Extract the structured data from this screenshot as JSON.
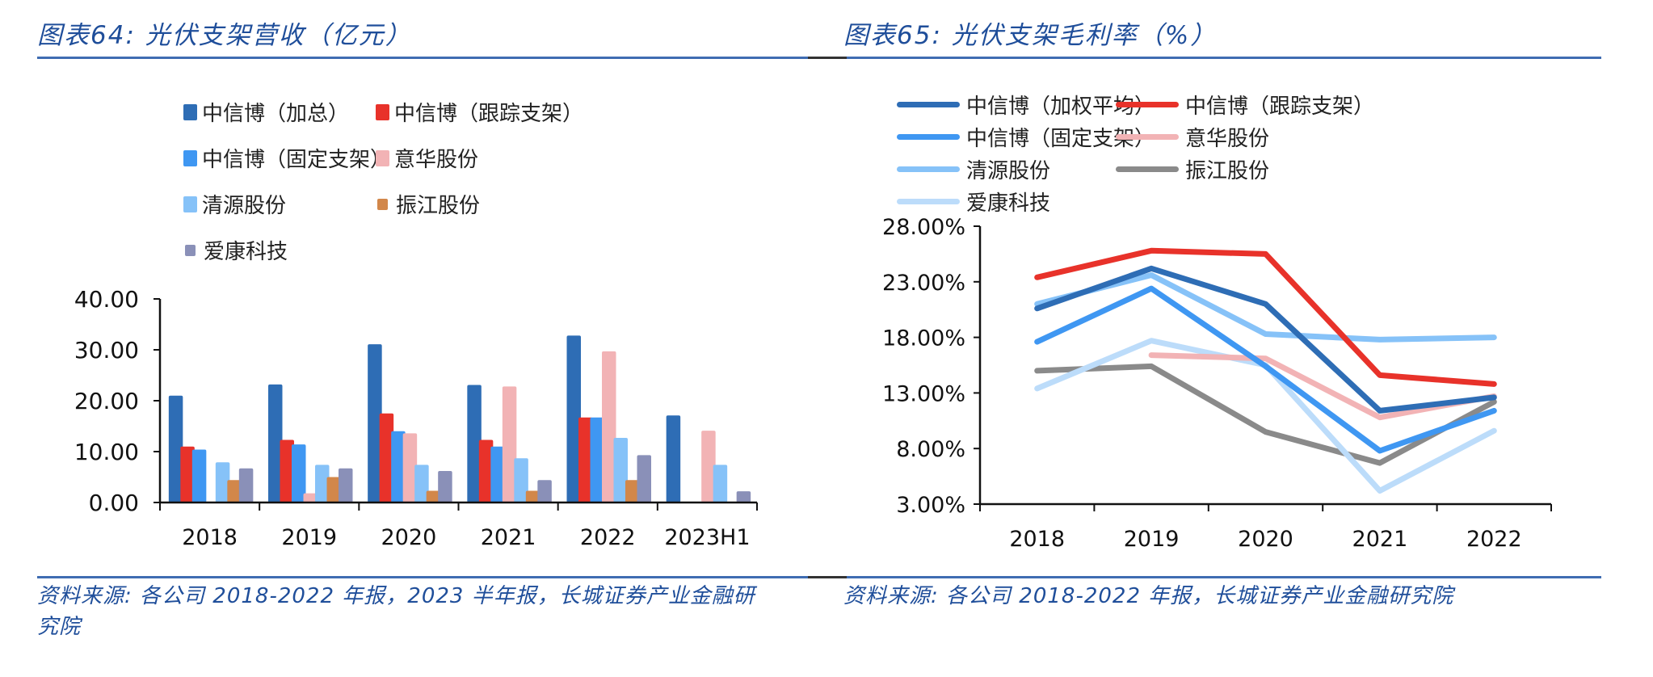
{
  "left": {
    "title": "图表64: 光伏支架营收（亿元）",
    "source_line1": "资料来源: 各公司 2018-2022 年报，2023 半年报，长城证券产业金融研",
    "source_line2": "究院"
  },
  "right": {
    "title": "图表65: 光伏支架毛利率（%）",
    "source_line1": "资料来源: 各公司 2018-2022 年报，长城证券产业金融研究院"
  },
  "chart_data": [
    {
      "type": "bar",
      "title": "光伏支架营收（亿元）",
      "xlabel": "",
      "ylabel": "",
      "ylim": [
        0,
        40
      ],
      "yticks": [
        "0.00",
        "10.00",
        "20.00",
        "30.00",
        "40.00"
      ],
      "categories": [
        "2018",
        "2019",
        "2020",
        "2021",
        "2022",
        "2023H1"
      ],
      "legend_position": "top",
      "series": [
        {
          "name": "中信博（加总）",
          "color": "#2e6db5",
          "values": [
            21.0,
            23.2,
            31.1,
            23.1,
            32.8,
            17.1
          ]
        },
        {
          "name": "中信博（跟踪支架）",
          "color": "#e8322a",
          "values": [
            11.0,
            12.3,
            17.5,
            12.3,
            16.7,
            null
          ]
        },
        {
          "name": "中信博（固定支架）",
          "color": "#3f97f2",
          "values": [
            10.4,
            11.4,
            14.0,
            11.0,
            16.7,
            null
          ]
        },
        {
          "name": "意华股份",
          "color": "#f2b3b5",
          "values": [
            null,
            1.8,
            13.6,
            22.8,
            29.7,
            14.1
          ]
        },
        {
          "name": "清源股份",
          "color": "#86c2f8",
          "values": [
            7.9,
            7.4,
            7.4,
            8.7,
            12.7,
            7.4
          ]
        },
        {
          "name": "振江股份",
          "color": "#d2874a",
          "values": [
            4.4,
            5.0,
            2.3,
            2.3,
            4.4,
            null
          ]
        },
        {
          "name": "爱康科技",
          "color": "#8a90b8",
          "values": [
            6.7,
            6.7,
            6.2,
            4.4,
            9.3,
            2.2
          ]
        }
      ]
    },
    {
      "type": "line",
      "title": "光伏支架毛利率（%）",
      "xlabel": "",
      "ylabel": "",
      "ylim": [
        3,
        28
      ],
      "yticks": [
        "3.00%",
        "8.00%",
        "13.00%",
        "18.00%",
        "23.00%",
        "28.00%"
      ],
      "categories": [
        "2018",
        "2019",
        "2020",
        "2021",
        "2022"
      ],
      "legend_position": "top",
      "series": [
        {
          "name": "中信博（加权平均）",
          "color": "#2e6db5",
          "values": [
            20.6,
            24.2,
            21.0,
            11.4,
            12.6
          ]
        },
        {
          "name": "中信博（跟踪支架）",
          "color": "#e8322a",
          "values": [
            23.4,
            25.8,
            25.5,
            14.6,
            13.8
          ]
        },
        {
          "name": "中信博（固定支架）",
          "color": "#3f97f2",
          "values": [
            17.6,
            22.4,
            15.4,
            7.8,
            11.4
          ]
        },
        {
          "name": "意华股份",
          "color": "#f2b3b5",
          "values": [
            null,
            16.4,
            16.1,
            10.8,
            12.7
          ]
        },
        {
          "name": "清源股份",
          "color": "#86c2f8",
          "values": [
            21.0,
            23.6,
            18.3,
            17.8,
            18.0
          ]
        },
        {
          "name": "振江股份",
          "color": "#8a8a8a",
          "values": [
            15.0,
            15.4,
            9.5,
            6.7,
            12.2
          ]
        },
        {
          "name": "爱康科技",
          "color": "#bcdcfa",
          "values": [
            13.4,
            17.7,
            15.5,
            4.2,
            9.6
          ]
        }
      ]
    }
  ]
}
